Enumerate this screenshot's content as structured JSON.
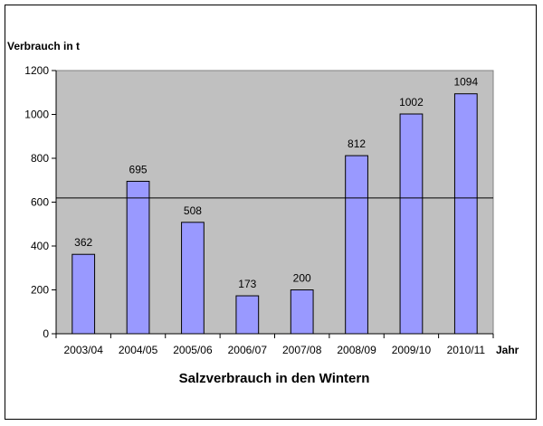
{
  "chart_data": {
    "type": "bar",
    "title": "Salzverbrauch in den Wintern",
    "ylabel": "Verbrauch in t",
    "xlabel": "Jahr",
    "categories": [
      "2003/04",
      "2004/05",
      "2005/06",
      "2006/07",
      "2007/08",
      "2008/09",
      "2009/10",
      "2010/11"
    ],
    "values": [
      362,
      695,
      508,
      173,
      200,
      812,
      1002,
      1094
    ],
    "data_labels": [
      "362",
      "695",
      "508",
      "173",
      "200",
      "812",
      "1002",
      "1094"
    ],
    "ylim": [
      0,
      1200
    ],
    "yticks": [
      0,
      200,
      400,
      600,
      800,
      1000,
      1200
    ],
    "reference_line": 619,
    "grid": false,
    "legend": "none",
    "colors": {
      "bar_fill": "#9999ff",
      "bar_stroke": "#000000",
      "plot_background": "#c0c0c0",
      "reference_line": "#000000"
    }
  }
}
